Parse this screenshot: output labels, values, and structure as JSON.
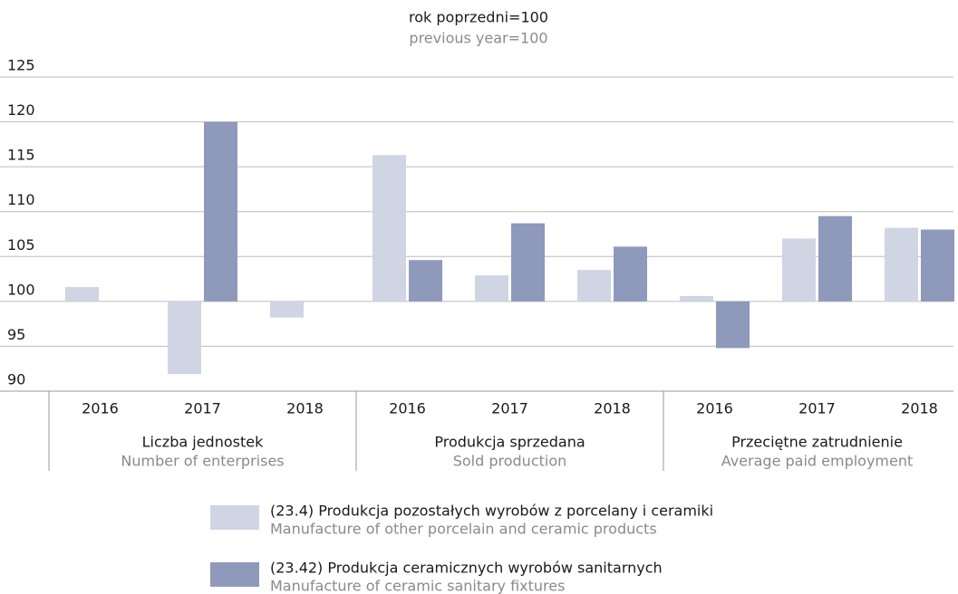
{
  "chart_data": {
    "type": "bar",
    "title": "rok poprzedni=100",
    "subtitle": "previous year=100",
    "categories": [
      "2016",
      "2017",
      "2018",
      "2016",
      "2017",
      "2018",
      "2016",
      "2017",
      "2018"
    ],
    "groups": [
      {
        "label": "Liczba jednostek",
        "label_en": "Number of enterprises"
      },
      {
        "label": "Produkcja sprzedana",
        "label_en": "Sold production"
      },
      {
        "label": "Przeciętne zatrudnienie",
        "label_en": "Average paid employment"
      }
    ],
    "baseline": 100,
    "series": [
      {
        "name": "(23.4) Produkcja pozostałych wyrobów z porcelany i ceramiki",
        "name_en": "Manufacture of other porcelain and ceramic products",
        "color": "#cfd5e3",
        "values": [
          101.6,
          91.9,
          98.2,
          116.3,
          102.9,
          103.5,
          100.6,
          107.0,
          108.2
        ]
      },
      {
        "name": "(23.42) Produkcja ceramicznych wyrobów sanitarnych",
        "name_en": "Manufacture of ceramic sanitary fixtures",
        "color": "#8e99bb",
        "values": [
          100,
          120.0,
          100,
          104.6,
          108.7,
          106.1,
          94.8,
          109.5,
          108.0
        ]
      }
    ],
    "ylim": [
      90,
      125
    ],
    "yticks": [
      90,
      95,
      100,
      105,
      110,
      115,
      120,
      125
    ],
    "grid": true
  }
}
